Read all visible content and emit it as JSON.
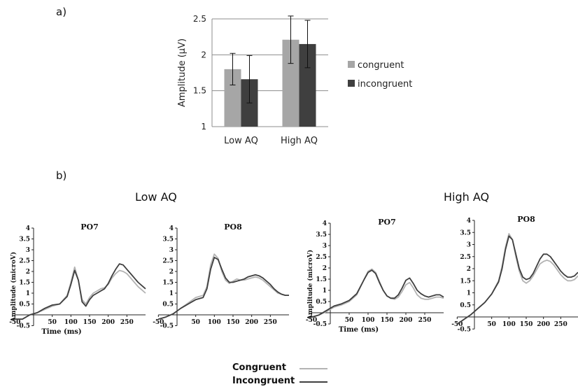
{
  "panels": {
    "a": "a)",
    "b": "b)"
  },
  "groups": {
    "low": "Low AQ",
    "high": "High AQ"
  },
  "bottom_legend": [
    {
      "label": "Congruent",
      "color": "#b3b3b3"
    },
    {
      "label": "Incongruent",
      "color": "#404040"
    }
  ],
  "chart_data": [
    {
      "type": "bar",
      "ylabel": "Amplitude (µV)",
      "categories": [
        "Low AQ",
        "High AQ"
      ],
      "ylim": [
        1,
        2.5
      ],
      "yticks": [
        "1",
        "1.5",
        "2",
        "2.5"
      ],
      "grid": true,
      "legend_position": "right",
      "series": [
        {
          "name": "congruent",
          "color": "#a6a6a6",
          "values": [
            1.8,
            2.21
          ],
          "errors": [
            0.22,
            0.33
          ]
        },
        {
          "name": "incongruent",
          "color": "#3f3f3f",
          "values": [
            1.66,
            2.15
          ],
          "errors": [
            0.33,
            0.33
          ]
        }
      ]
    },
    {
      "type": "line",
      "title": "PO7",
      "group": "Low AQ",
      "ylabel": "Amplitude (microV)",
      "xlabel": "Time (ms)",
      "xlim": [
        -50,
        300
      ],
      "ylim": [
        -0.5,
        4
      ],
      "xticks": [
        "-50",
        "50",
        "100",
        "150",
        "200",
        "250"
      ],
      "yticks": [
        "-0.5",
        "0.5",
        "1",
        "1.5",
        "2",
        "2.5",
        "3",
        "3.5",
        "4"
      ],
      "x": [
        -50,
        -30,
        -10,
        10,
        30,
        50,
        70,
        90,
        100,
        110,
        120,
        130,
        140,
        150,
        160,
        170,
        180,
        190,
        200,
        210,
        220,
        230,
        240,
        250,
        260,
        270,
        280,
        290,
        300
      ],
      "series": [
        {
          "name": "Congruent",
          "color": "#b3b3b3",
          "values": [
            -0.2,
            -0.2,
            0.0,
            0.1,
            0.25,
            0.4,
            0.5,
            0.9,
            1.5,
            2.2,
            1.6,
            0.7,
            0.5,
            0.8,
            1.0,
            1.1,
            1.2,
            1.25,
            1.4,
            1.7,
            1.9,
            2.05,
            2.0,
            1.9,
            1.7,
            1.5,
            1.3,
            1.15,
            1.0
          ]
        },
        {
          "name": "Incongruent",
          "color": "#3f3f3f",
          "values": [
            -0.2,
            -0.2,
            0.0,
            0.1,
            0.3,
            0.45,
            0.5,
            0.85,
            1.4,
            2.05,
            1.6,
            0.6,
            0.4,
            0.7,
            0.9,
            1.0,
            1.1,
            1.2,
            1.45,
            1.8,
            2.1,
            2.35,
            2.3,
            2.1,
            1.9,
            1.7,
            1.5,
            1.35,
            1.2
          ]
        }
      ]
    },
    {
      "type": "line",
      "title": "PO8",
      "group": "Low AQ",
      "ylabel": "",
      "xlabel": "",
      "xlim": [
        -50,
        300
      ],
      "ylim": [
        -0.5,
        4
      ],
      "xticks": [
        "-50",
        "50",
        "100",
        "150",
        "200",
        "250"
      ],
      "yticks": [
        "-0.5",
        "0.5",
        "1",
        "1.5",
        "2",
        "2.5",
        "3",
        "3.5",
        "4"
      ],
      "x": [
        -50,
        -30,
        -10,
        10,
        30,
        50,
        70,
        80,
        90,
        100,
        110,
        120,
        130,
        140,
        150,
        160,
        170,
        180,
        190,
        200,
        210,
        220,
        230,
        240,
        250,
        260,
        270,
        280,
        290,
        300
      ],
      "series": [
        {
          "name": "Congruent",
          "color": "#b3b3b3",
          "values": [
            -0.2,
            -0.1,
            0.05,
            0.3,
            0.55,
            0.8,
            0.9,
            1.3,
            2.3,
            2.8,
            2.6,
            2.0,
            1.6,
            1.45,
            1.55,
            1.65,
            1.6,
            1.6,
            1.65,
            1.7,
            1.75,
            1.7,
            1.6,
            1.45,
            1.3,
            1.15,
            1.0,
            0.95,
            0.9,
            0.9
          ]
        },
        {
          "name": "Incongruent",
          "color": "#3f3f3f",
          "values": [
            -0.2,
            -0.1,
            0.05,
            0.3,
            0.5,
            0.7,
            0.8,
            1.2,
            2.1,
            2.65,
            2.55,
            2.1,
            1.7,
            1.5,
            1.5,
            1.55,
            1.6,
            1.65,
            1.75,
            1.8,
            1.85,
            1.8,
            1.7,
            1.55,
            1.4,
            1.2,
            1.05,
            0.95,
            0.9,
            0.9
          ]
        }
      ]
    },
    {
      "type": "line",
      "title": "PO7",
      "group": "High AQ",
      "ylabel": "Amplitude (microV)",
      "xlabel": "Time (ms)",
      "xlim": [
        -50,
        300
      ],
      "ylim": [
        -0.5,
        4
      ],
      "xticks": [
        "-50",
        "50",
        "100",
        "150",
        "200",
        "250"
      ],
      "yticks": [
        "-0.5",
        "0.5",
        "1",
        "1.5",
        "2",
        "2.5",
        "3",
        "3.5",
        "4"
      ],
      "x": [
        -50,
        -30,
        -10,
        10,
        30,
        50,
        70,
        90,
        100,
        110,
        120,
        130,
        140,
        150,
        160,
        170,
        180,
        190,
        200,
        210,
        220,
        230,
        240,
        250,
        260,
        270,
        280,
        290,
        300
      ],
      "series": [
        {
          "name": "Congruent",
          "color": "#b3b3b3",
          "values": [
            -0.2,
            -0.1,
            0.05,
            0.25,
            0.35,
            0.5,
            0.8,
            1.5,
            1.85,
            1.95,
            1.8,
            1.4,
            1.0,
            0.75,
            0.65,
            0.6,
            0.7,
            0.95,
            1.25,
            1.35,
            1.1,
            0.8,
            0.65,
            0.6,
            0.6,
            0.65,
            0.7,
            0.7,
            0.65
          ]
        },
        {
          "name": "Incongruent",
          "color": "#3f3f3f",
          "values": [
            -0.2,
            -0.1,
            0.1,
            0.3,
            0.4,
            0.55,
            0.85,
            1.5,
            1.8,
            1.9,
            1.75,
            1.35,
            1.0,
            0.75,
            0.65,
            0.65,
            0.8,
            1.1,
            1.45,
            1.55,
            1.3,
            1.0,
            0.85,
            0.75,
            0.7,
            0.75,
            0.8,
            0.8,
            0.7
          ]
        }
      ]
    },
    {
      "type": "line",
      "title": "PO8",
      "group": "High AQ",
      "ylabel": "",
      "xlabel": "",
      "xlim": [
        -50,
        300
      ],
      "ylim": [
        -0.5,
        4
      ],
      "xticks": [
        "-50",
        "50",
        "100",
        "150",
        "200",
        "250"
      ],
      "yticks": [
        "-0.5",
        "0.5",
        "1",
        "1.5",
        "2",
        "2.5",
        "3",
        "3.5",
        "4"
      ],
      "x": [
        -50,
        -30,
        -10,
        10,
        30,
        50,
        70,
        80,
        90,
        100,
        110,
        120,
        130,
        140,
        150,
        160,
        170,
        180,
        190,
        200,
        210,
        220,
        230,
        240,
        250,
        260,
        270,
        280,
        290,
        300
      ],
      "series": [
        {
          "name": "Congruent",
          "color": "#b3b3b3",
          "values": [
            -0.3,
            -0.1,
            0.1,
            0.35,
            0.6,
            0.95,
            1.5,
            2.1,
            2.9,
            3.45,
            3.2,
            2.5,
            1.9,
            1.5,
            1.4,
            1.5,
            1.7,
            1.95,
            2.2,
            2.3,
            2.35,
            2.3,
            2.15,
            1.95,
            1.75,
            1.6,
            1.5,
            1.5,
            1.55,
            1.7
          ]
        },
        {
          "name": "Incongruent",
          "color": "#3f3f3f",
          "values": [
            -0.3,
            -0.1,
            0.1,
            0.35,
            0.6,
            0.95,
            1.45,
            2.0,
            2.8,
            3.35,
            3.2,
            2.6,
            2.0,
            1.65,
            1.55,
            1.6,
            1.8,
            2.1,
            2.4,
            2.6,
            2.6,
            2.5,
            2.3,
            2.1,
            1.9,
            1.75,
            1.65,
            1.65,
            1.7,
            1.85
          ]
        }
      ]
    }
  ]
}
